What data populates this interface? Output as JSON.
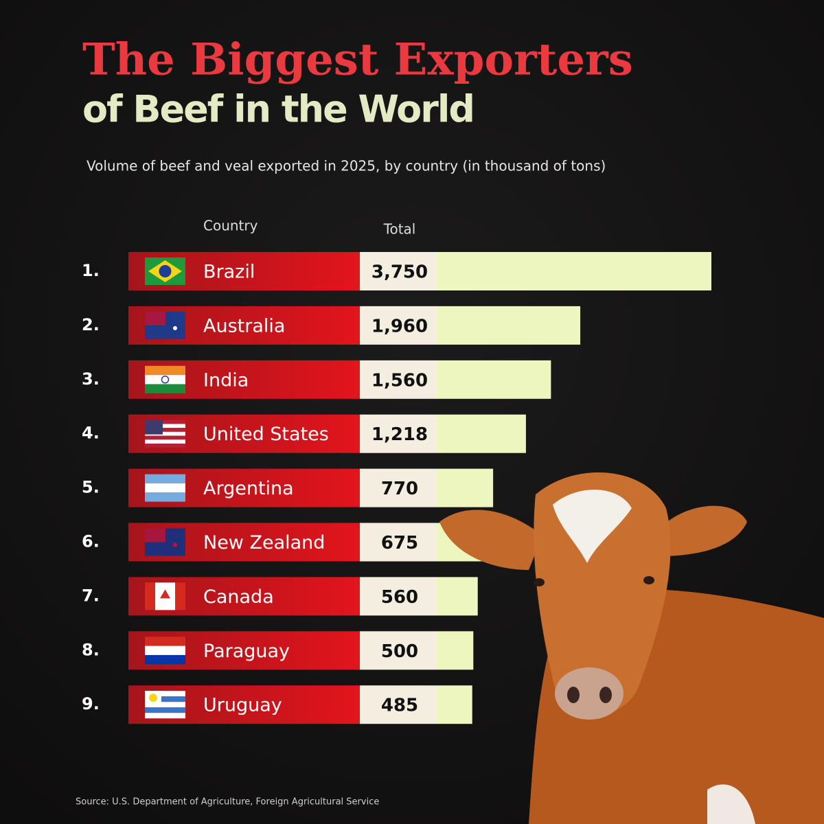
{
  "chart_data": {
    "type": "bar",
    "title_lines": [
      "The Biggest Exporters",
      "of Beef in the World"
    ],
    "subtitle": "Volume of beef and veal exported in 2025, by country (in thousand of tons)",
    "column_headers": [
      "Country",
      "Total"
    ],
    "ranks": [
      "1.",
      "2.",
      "3.",
      "4.",
      "5.",
      "6.",
      "7.",
      "8.",
      "9."
    ],
    "categories": [
      "Brazil",
      "Australia",
      "India",
      "United States",
      "Argentina",
      "New Zealand",
      "Canada",
      "Paraguay",
      "Uruguay"
    ],
    "values": [
      3750,
      1960,
      1560,
      1218,
      770,
      675,
      560,
      500,
      485
    ],
    "value_labels": [
      "3,750",
      "1,960",
      "1,560",
      "1,218",
      "770",
      "675",
      "560",
      "500",
      "485"
    ],
    "color": "#eef6c0",
    "source": "Source: U.S. Department of Agriculture, Foreign Agricultural Service"
  }
}
